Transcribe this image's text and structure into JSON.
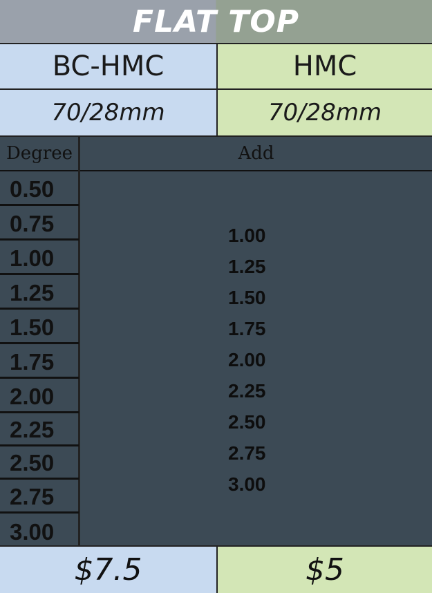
{
  "title": "FLAT TOP",
  "columns": [
    {
      "name": "BC-HMC",
      "size": "70/28mm",
      "price": "$7.5"
    },
    {
      "name": "HMC",
      "size": "70/28mm",
      "price": "$5"
    }
  ],
  "table": {
    "degree_header": "Degree",
    "add_header": "Add",
    "degrees": [
      "0.50",
      "0.75",
      "1.00",
      "1.25",
      "1.50",
      "1.75",
      "2.00",
      "2.25",
      "2.50",
      "2.75",
      "3.00"
    ],
    "adds": [
      "1.00",
      "1.25",
      "1.50",
      "1.75",
      "2.00",
      "2.25",
      "2.50",
      "2.75",
      "3.00"
    ]
  }
}
